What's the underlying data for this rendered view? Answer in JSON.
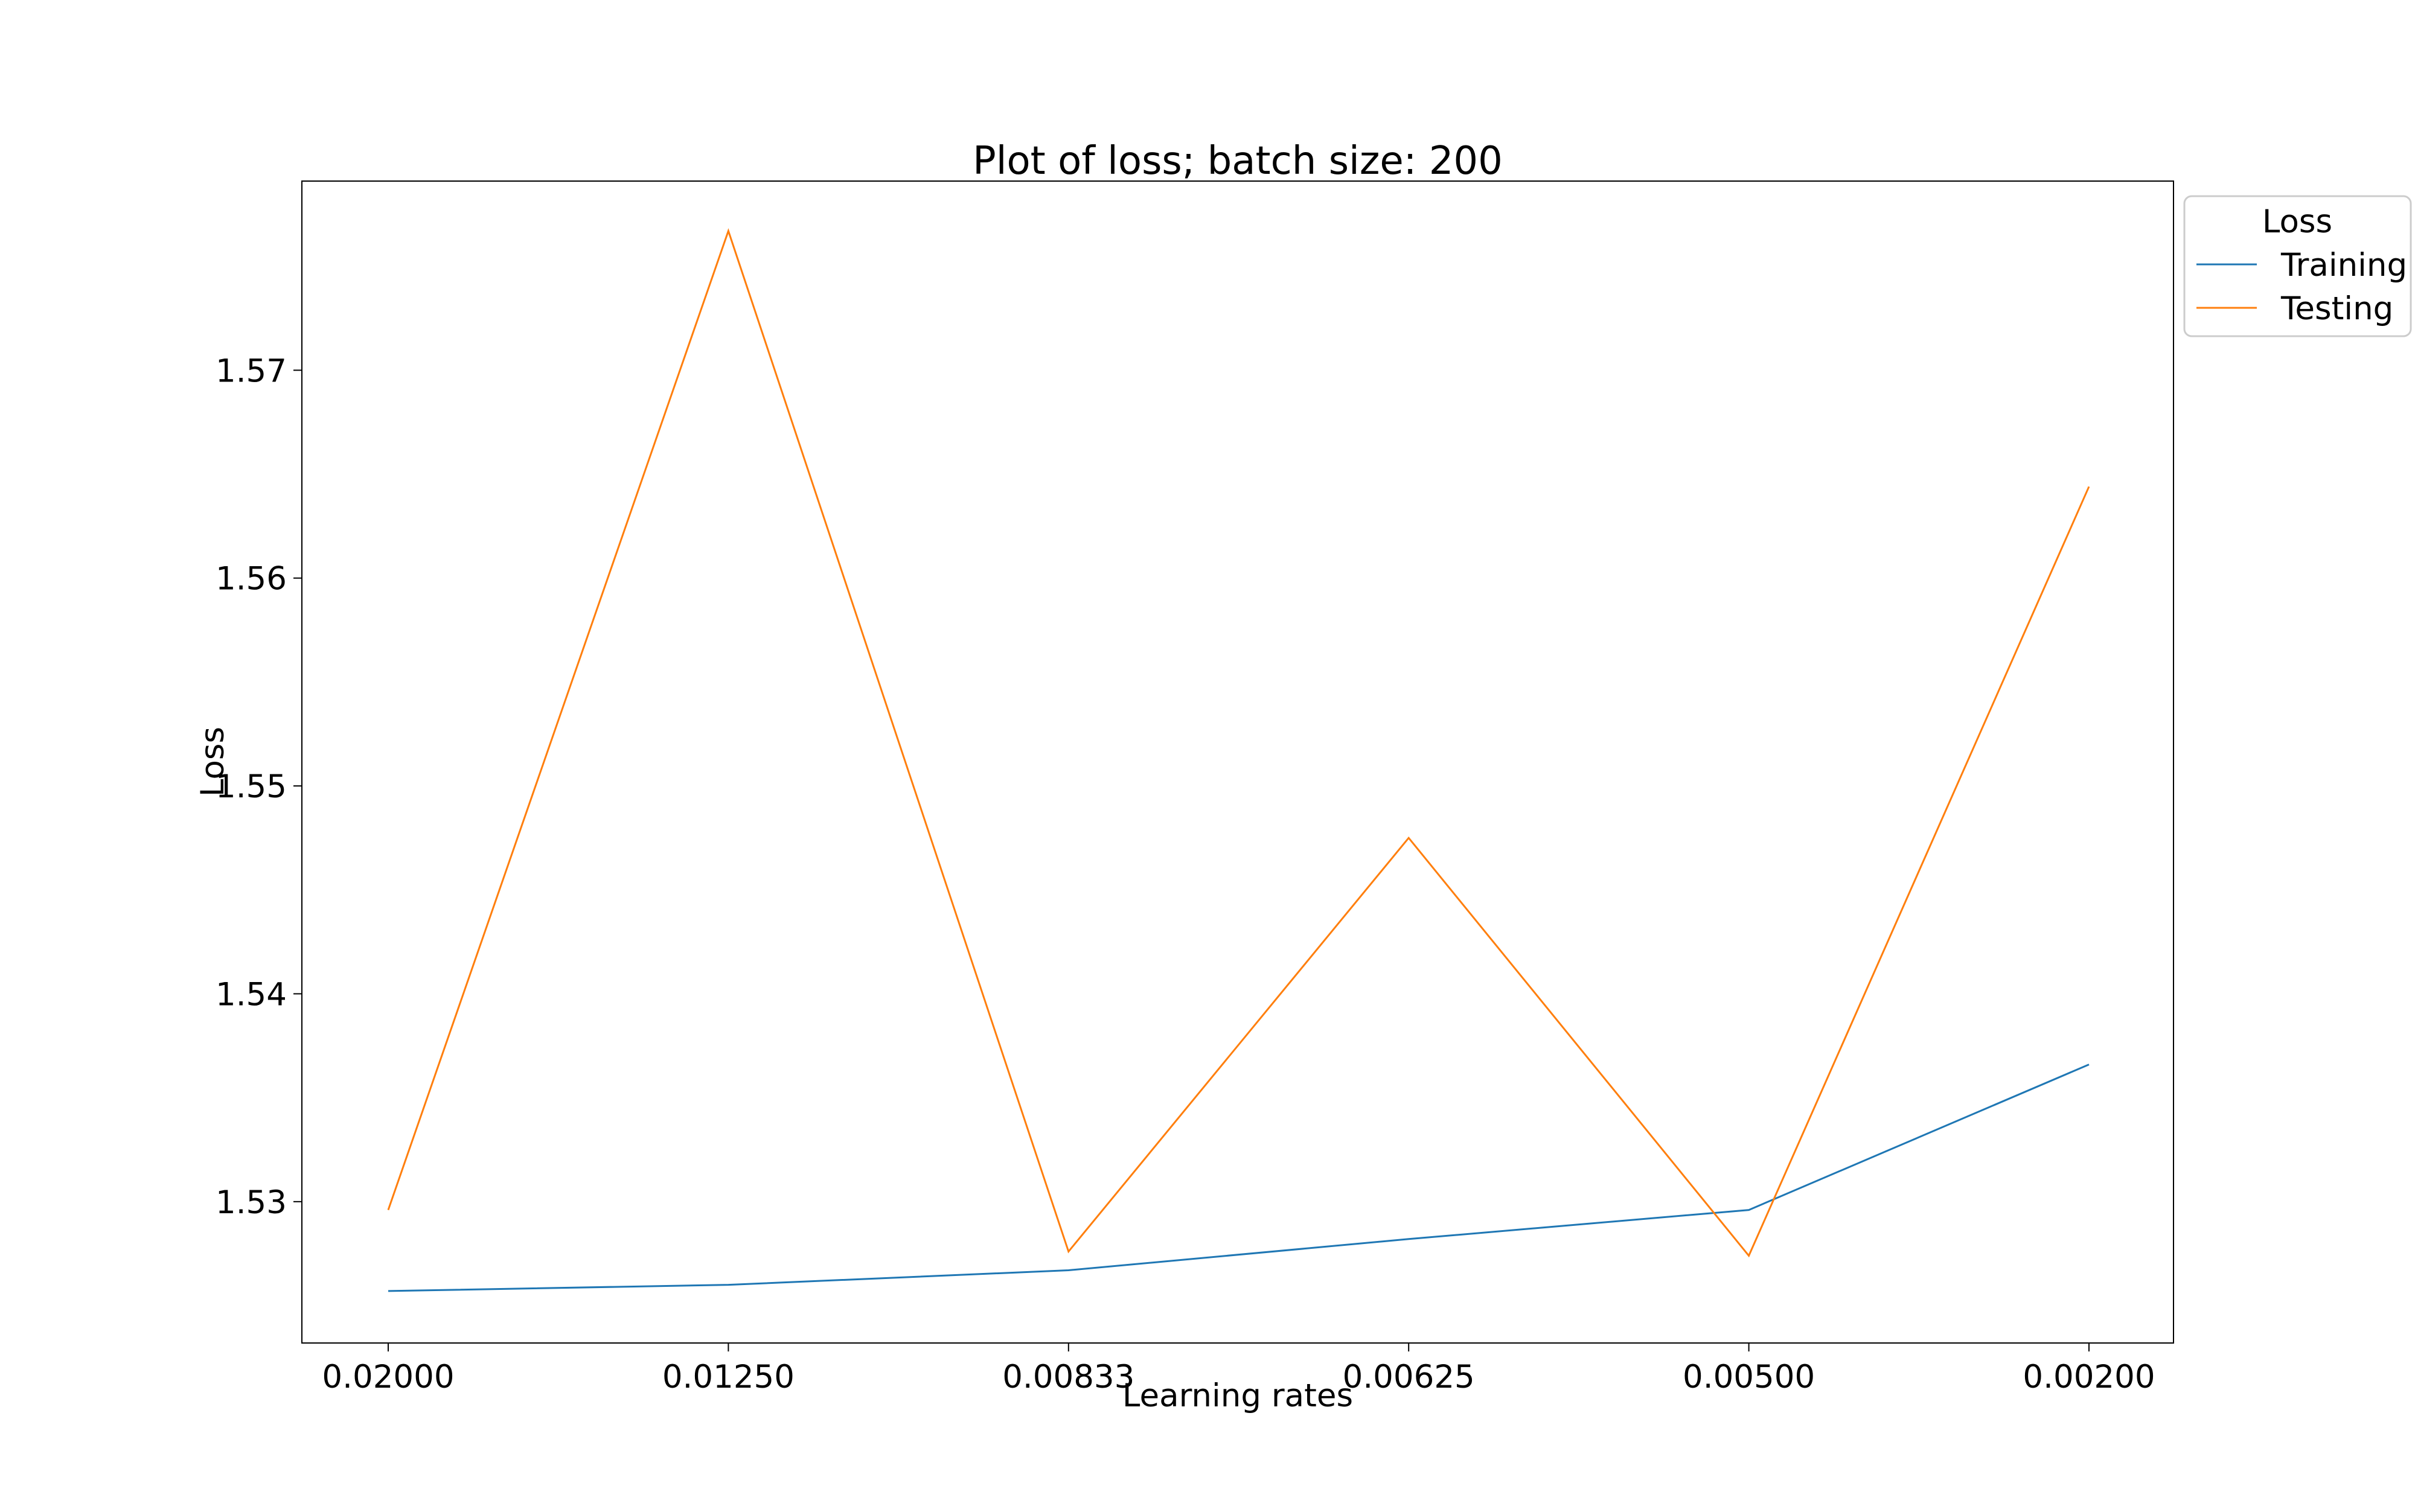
{
  "chart_data": {
    "type": "line",
    "title": "Plot of loss; batch size: 200",
    "xlabel": "Learning rates",
    "ylabel": "Loss",
    "categories": [
      "0.02000",
      "0.01250",
      "0.00833",
      "0.00625",
      "0.00500",
      "0.00200"
    ],
    "ylim": [
      1.5232,
      1.5791
    ],
    "yticks": [
      1.53,
      1.54,
      1.55,
      1.56,
      1.57
    ],
    "ytick_labels": [
      "1.53",
      "1.54",
      "1.55",
      "1.56",
      "1.57"
    ],
    "grid": false,
    "legend": {
      "title": "Loss",
      "placement": "outside-top-right"
    },
    "series": [
      {
        "name": "Training",
        "color": "#1f77b4",
        "values": [
          1.5257,
          1.526,
          1.5267,
          1.5282,
          1.5296,
          1.5366
        ]
      },
      {
        "name": "Testing",
        "color": "#ff7f0e",
        "values": [
          1.5296,
          1.5767,
          1.5276,
          1.5475,
          1.5274,
          1.5644
        ]
      }
    ]
  }
}
